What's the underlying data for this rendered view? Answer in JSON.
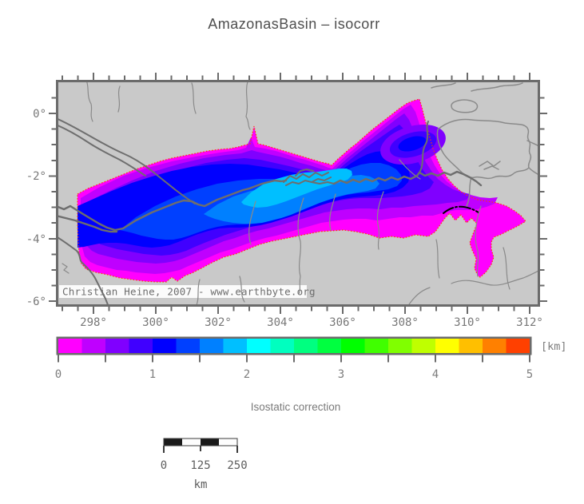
{
  "title": "AmazonasBasin – isocorr",
  "map": {
    "background": "#c9c9c9",
    "frame_color": "#6b6b6b",
    "river_color": "#6e6e6e",
    "thin_river_color": "#8a8a8a",
    "outline_color": "#ff4000",
    "black_contour_color": "#000000",
    "x_tick_labels": [
      "298°",
      "300°",
      "302°",
      "304°",
      "306°",
      "308°",
      "310°",
      "312°"
    ],
    "y_tick_labels": [
      "0°",
      "-2°",
      "-4°",
      "-6°"
    ],
    "attribution": "Christian Heine, 2007 - www.earthbyte.org",
    "band_colors": [
      "#ff00ff",
      "#bf00ff",
      "#8000ff",
      "#4000ff",
      "#0000ff",
      "#0040ff",
      "#0080ff",
      "#00bfff"
    ]
  },
  "colorbar": {
    "colors": [
      "#ff00ff",
      "#bf00ff",
      "#8000ff",
      "#4000ff",
      "#0000ff",
      "#0040ff",
      "#0080ff",
      "#00bfff",
      "#00ffff",
      "#00ffbf",
      "#00ff80",
      "#00ff40",
      "#00ff00",
      "#40ff00",
      "#80ff00",
      "#bfff00",
      "#ffff00",
      "#ffbf00",
      "#ff8000",
      "#ff4000"
    ],
    "tick_labels": [
      "0",
      "1",
      "2",
      "3",
      "4",
      "5"
    ],
    "unit_label": "[km]",
    "caption": "Isostatic correction"
  },
  "scalebar": {
    "tick_labels": [
      "0",
      "125",
      "250"
    ],
    "unit_label": "km"
  },
  "chart_data": {
    "type": "filled_contour_map",
    "title": "AmazonasBasin – isocorr",
    "variable": "Isostatic correction",
    "units": "km",
    "colorbar_range": [
      0,
      5
    ],
    "colorbar_step": 0.25,
    "lon_ticks_deg": [
      298,
      300,
      302,
      304,
      306,
      308,
      310,
      312
    ],
    "lat_ticks_deg": [
      0,
      -2,
      -4,
      -6
    ],
    "contour_levels_visible_km": [
      0,
      0.25,
      0.5,
      0.75,
      1.0,
      1.25,
      1.5,
      1.75,
      2.0
    ],
    "scalebar_km": [
      0,
      125,
      250
    ]
  }
}
